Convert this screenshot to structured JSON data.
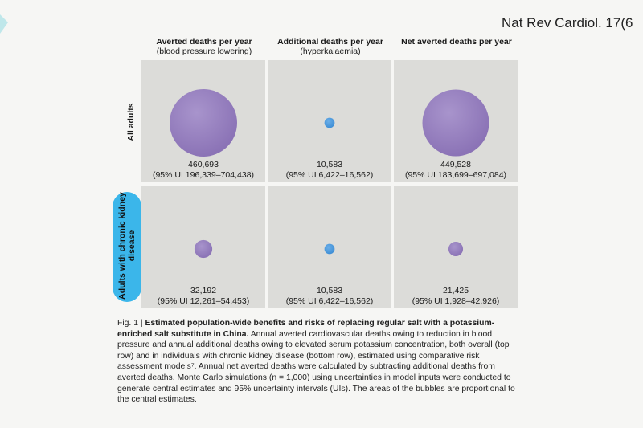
{
  "citation": "Nat Rev Cardiol. 17(6",
  "colors": {
    "panel": "#dcdcd9",
    "large_bubble": "#8b73b6",
    "small_blue": "#3f8fd6",
    "small_purple": "#8f75b8",
    "pill": "#3bb6ea"
  },
  "chart_data": {
    "type": "bubble-grid",
    "columns": [
      {
        "title": "Averted deaths per year",
        "subtitle": "(blood pressure lowering)"
      },
      {
        "title": "Additional deaths per year",
        "subtitle": "(hyperkalaemia)"
      },
      {
        "title": "Net averted deaths per year",
        "subtitle": ""
      }
    ],
    "rows": [
      {
        "label": "All adults"
      },
      {
        "label": "Adults with chronic kidney disease"
      }
    ],
    "cells": [
      [
        {
          "value": 460693,
          "value_label": "460,693",
          "ui_label": "(95% UI 196,339–704,438)",
          "color": "purple"
        },
        {
          "value": 10583,
          "value_label": "10,583",
          "ui_label": "(95% UI 6,422–16,562)",
          "color": "blue"
        },
        {
          "value": 449528,
          "value_label": "449,528",
          "ui_label": "(95% UI 183,699–697,084)",
          "color": "purple"
        }
      ],
      [
        {
          "value": 32192,
          "value_label": "32,192",
          "ui_label": "(95% UI 12,261–54,453)",
          "color": "purple"
        },
        {
          "value": 10583,
          "value_label": "10,583",
          "ui_label": "(95% UI 6,422–16,562)",
          "color": "blue"
        },
        {
          "value": 21425,
          "value_label": "21,425",
          "ui_label": "(95% UI 1,928–42,926)",
          "color": "purple"
        }
      ]
    ]
  },
  "caption": {
    "fig": "Fig. 1 | ",
    "bold": "Estimated population-wide benefits and risks of replacing regular salt with a potassium-enriched salt substitute in China.",
    "body": " Annual averted cardiovascular deaths owing to reduction in blood pressure and annual additional deaths owing to elevated serum potassium concentration, both overall (top row) and in individuals with chronic kidney disease (bottom row), estimated using comparative risk assessment models⁷. Annual net averted deaths were calculated by subtracting additional deaths from averted deaths. Monte Carlo simulations (n = 1,000) using uncertainties in model inputs were conducted to generate central estimates and 95% uncertainty intervals (UIs). The areas of the bubbles are proportional to the central estimates."
  }
}
